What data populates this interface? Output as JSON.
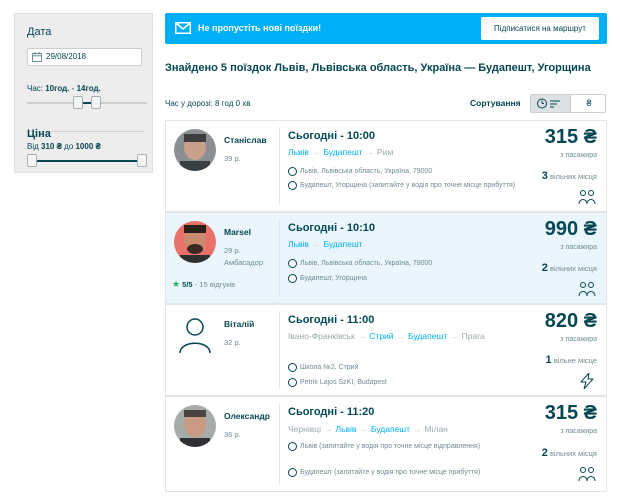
{
  "sidebar": {
    "date_label": "Дата",
    "date_value": "29/08/2018",
    "time_prefix": "Час: ",
    "time_from": "10год.",
    "time_sep": " - ",
    "time_to": "14год.",
    "time_slider": {
      "min": 0,
      "max": 24,
      "from": 10,
      "to": 14
    },
    "price_label": "Ціна",
    "price_from_prefix": "Від ",
    "price_from": "310 ₴",
    "price_mid": " до ",
    "price_to": "1000 ₴",
    "price_slider": {
      "min": 310,
      "max": 1000,
      "from": 310,
      "to": 1000
    }
  },
  "banner": {
    "text": "Не пропустіть нові поїздки!",
    "button": "Підписатися на маршрут",
    "color": "#00aff5"
  },
  "results": {
    "title": "Знайдено 5 поїздок Львів, Львівська область, Україна — Будапешт, Угорщина",
    "travel_time": "Час у дорозі: 8 год 0 хв",
    "sort_label": "Сортування",
    "sort_price_symbol": "₴"
  },
  "trips": [
    {
      "name": "Станіслав",
      "age": "39 р.",
      "departure": "Сьогодні - 10:00",
      "route": [
        {
          "city": "Львів",
          "highlight": true
        },
        {
          "city": "Будапешт",
          "highlight": true
        },
        {
          "city": "Рим",
          "highlight": false
        }
      ],
      "stops": [
        "Львів, Львівська область, Україна, 79000",
        "Будапешт, Угорщина (запитайте у водія про точне місце прибуття)"
      ],
      "price": "315 ₴",
      "per_pax": "з пасажира",
      "seats_num": "3",
      "seats_text": " вільних місця",
      "feature_icon": "two-max-back-icon"
    },
    {
      "name": "Marsel",
      "age": "29 р.",
      "ambassador": "Амбасадор",
      "rating": "5/5",
      "reviews": " - 15 відгуків",
      "departure": "Сьогодні - 10:10",
      "route": [
        {
          "city": "Львів",
          "highlight": true
        },
        {
          "city": "Будапешт",
          "highlight": true
        }
      ],
      "stops": [
        "Львів, Львівська область, Україна, 79000",
        "Будапешт, Угорщина"
      ],
      "price": "990 ₴",
      "per_pax": "з пасажира",
      "seats_num": "2",
      "seats_text": " вільних місця",
      "feature_icon": "two-max-back-icon"
    },
    {
      "name": "Віталій",
      "age": "32 р.",
      "departure": "Сьогодні - 11:00",
      "route": [
        {
          "city": "Івано-Франківськ",
          "highlight": false
        },
        {
          "city": "Стрий",
          "highlight": true
        },
        {
          "city": "Будапешт",
          "highlight": true
        },
        {
          "city": "Прага",
          "highlight": false
        }
      ],
      "stops": [
        "Школа №2, Стрий",
        "Petrik Lajos SzKI, Budapest"
      ],
      "price": "820 ₴",
      "per_pax": "з пасажира",
      "seats_num": "1",
      "seats_text": " вільне місце",
      "feature_icon": "lightning-icon"
    },
    {
      "name": "Олександр",
      "age": "36 р.",
      "departure": "Сьогодні - 11:20",
      "route": [
        {
          "city": "Чернівці",
          "highlight": false
        },
        {
          "city": "Львів",
          "highlight": true
        },
        {
          "city": "Будапешт",
          "highlight": true
        },
        {
          "city": "Мілан",
          "highlight": false
        }
      ],
      "stops": [
        "Львів (запитайте у водія про точне місце відправлення)",
        "Будапешт (запитайте у водія про точне місце прибуття)"
      ],
      "price": "315 ₴",
      "per_pax": "з пасажира",
      "seats_num": "2",
      "seats_text": " вільних місця",
      "feature_icon": "two-max-back-icon"
    }
  ]
}
